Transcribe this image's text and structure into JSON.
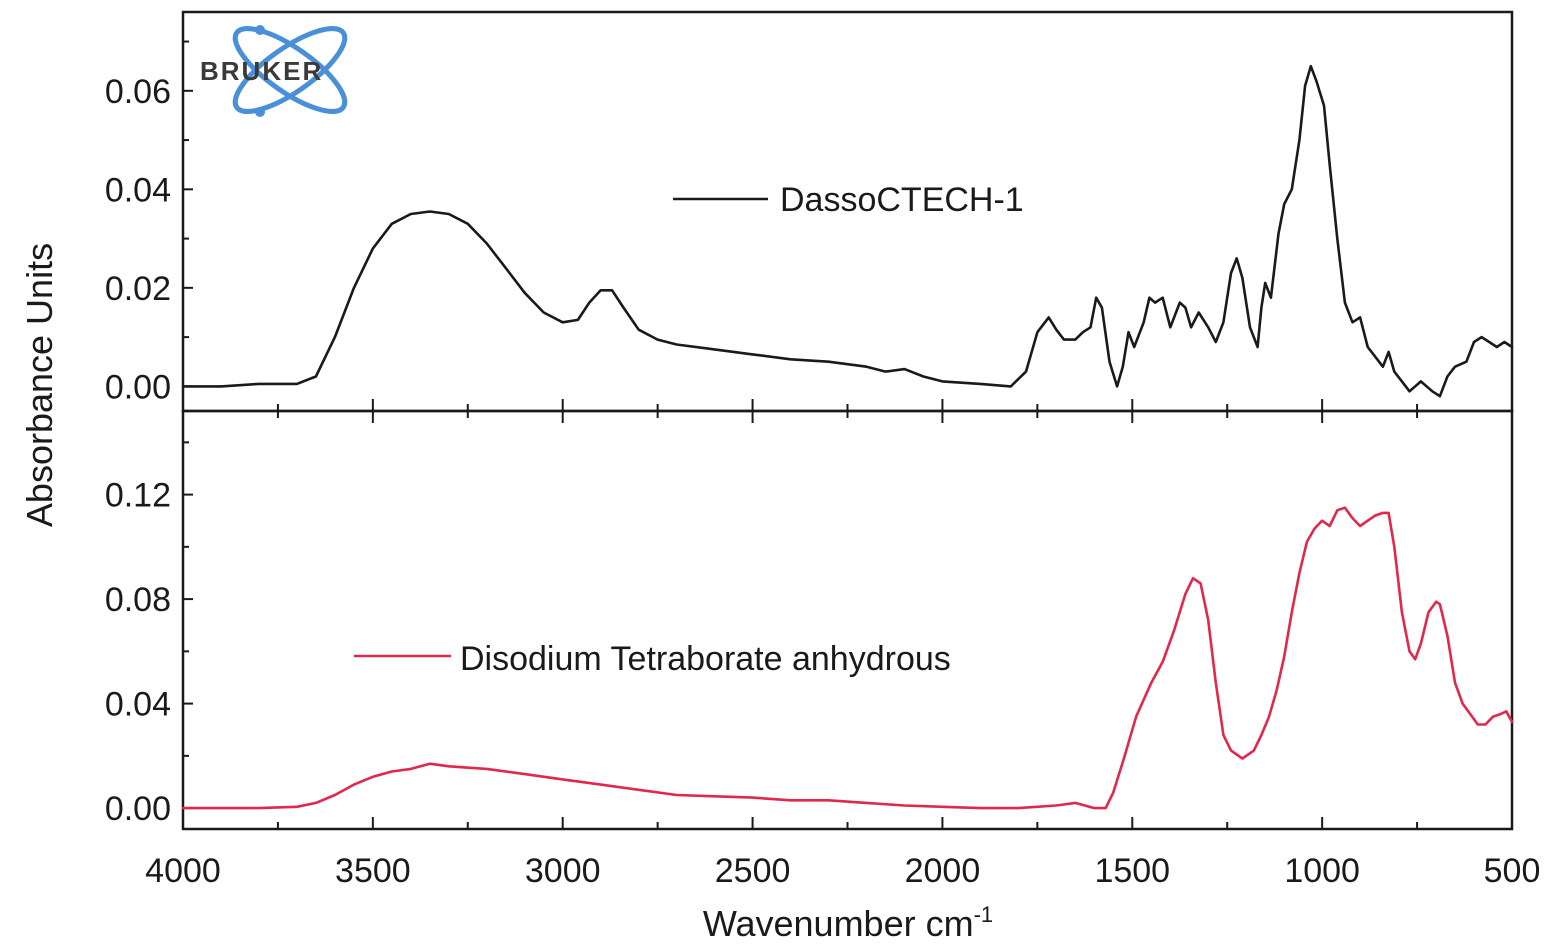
{
  "colors": {
    "series_black": "#1a1a1a",
    "series_red": "#e0294a",
    "logo_blue": "#4a90d9",
    "logo_text": "#3a3a3a"
  },
  "logo": {
    "text": "BRUKER",
    "icon": "bruker-atom-logo"
  },
  "chart_data": [
    {
      "type": "line",
      "panel": "top",
      "x_reversed": true,
      "xlim": [
        4000,
        500
      ],
      "ylim": [
        -0.005,
        0.076
      ],
      "yticks": [
        "0.00",
        "0.02",
        "0.04",
        "0.06"
      ],
      "ytick_values": [
        0.0,
        0.02,
        0.04,
        0.06
      ],
      "legend": "DassoCTECH-1",
      "legend_position": "top-center",
      "series": [
        {
          "name": "DassoCTECH-1",
          "color": "#1a1a1a",
          "points": [
            [
              4000,
              0.0
            ],
            [
              3900,
              0.0
            ],
            [
              3800,
              0.0005
            ],
            [
              3700,
              0.0005
            ],
            [
              3650,
              0.002
            ],
            [
              3600,
              0.01
            ],
            [
              3550,
              0.02
            ],
            [
              3500,
              0.028
            ],
            [
              3450,
              0.033
            ],
            [
              3400,
              0.035
            ],
            [
              3350,
              0.0355
            ],
            [
              3300,
              0.035
            ],
            [
              3250,
              0.033
            ],
            [
              3200,
              0.029
            ],
            [
              3150,
              0.024
            ],
            [
              3100,
              0.019
            ],
            [
              3050,
              0.015
            ],
            [
              3000,
              0.013
            ],
            [
              2960,
              0.0135
            ],
            [
              2930,
              0.017
            ],
            [
              2900,
              0.0195
            ],
            [
              2870,
              0.0195
            ],
            [
              2840,
              0.016
            ],
            [
              2800,
              0.0115
            ],
            [
              2750,
              0.0095
            ],
            [
              2700,
              0.0085
            ],
            [
              2600,
              0.0075
            ],
            [
              2500,
              0.0065
            ],
            [
              2400,
              0.0055
            ],
            [
              2300,
              0.005
            ],
            [
              2200,
              0.004
            ],
            [
              2150,
              0.003
            ],
            [
              2100,
              0.0035
            ],
            [
              2050,
              0.002
            ],
            [
              2000,
              0.001
            ],
            [
              1900,
              0.0005
            ],
            [
              1820,
              0.0
            ],
            [
              1780,
              0.003
            ],
            [
              1750,
              0.011
            ],
            [
              1720,
              0.014
            ],
            [
              1700,
              0.0115
            ],
            [
              1680,
              0.0095
            ],
            [
              1650,
              0.0095
            ],
            [
              1630,
              0.011
            ],
            [
              1610,
              0.012
            ],
            [
              1595,
              0.018
            ],
            [
              1580,
              0.016
            ],
            [
              1560,
              0.005
            ],
            [
              1540,
              0.0
            ],
            [
              1525,
              0.004
            ],
            [
              1510,
              0.011
            ],
            [
              1495,
              0.008
            ],
            [
              1470,
              0.013
            ],
            [
              1455,
              0.018
            ],
            [
              1440,
              0.017
            ],
            [
              1420,
              0.018
            ],
            [
              1400,
              0.012
            ],
            [
              1375,
              0.017
            ],
            [
              1360,
              0.016
            ],
            [
              1345,
              0.012
            ],
            [
              1325,
              0.015
            ],
            [
              1300,
              0.012
            ],
            [
              1280,
              0.009
            ],
            [
              1260,
              0.013
            ],
            [
              1240,
              0.023
            ],
            [
              1225,
              0.026
            ],
            [
              1210,
              0.022
            ],
            [
              1190,
              0.012
            ],
            [
              1170,
              0.008
            ],
            [
              1160,
              0.016
            ],
            [
              1150,
              0.021
            ],
            [
              1135,
              0.018
            ],
            [
              1115,
              0.031
            ],
            [
              1100,
              0.037
            ],
            [
              1080,
              0.04
            ],
            [
              1060,
              0.05
            ],
            [
              1045,
              0.061
            ],
            [
              1030,
              0.065
            ],
            [
              1015,
              0.062
            ],
            [
              995,
              0.057
            ],
            [
              980,
              0.045
            ],
            [
              960,
              0.03
            ],
            [
              940,
              0.017
            ],
            [
              920,
              0.013
            ],
            [
              900,
              0.014
            ],
            [
              880,
              0.008
            ],
            [
              860,
              0.006
            ],
            [
              840,
              0.004
            ],
            [
              825,
              0.007
            ],
            [
              810,
              0.003
            ],
            [
              790,
              0.001
            ],
            [
              770,
              -0.001
            ],
            [
              740,
              0.001
            ],
            [
              710,
              -0.001
            ],
            [
              690,
              -0.002
            ],
            [
              670,
              0.002
            ],
            [
              650,
              0.004
            ],
            [
              620,
              0.005
            ],
            [
              600,
              0.009
            ],
            [
              580,
              0.01
            ],
            [
              560,
              0.009
            ],
            [
              540,
              0.008
            ],
            [
              520,
              0.009
            ],
            [
              500,
              0.008
            ]
          ]
        }
      ]
    },
    {
      "type": "line",
      "panel": "bottom",
      "x_reversed": true,
      "xlim": [
        4000,
        500
      ],
      "ylim": [
        -0.008,
        0.152
      ],
      "xticks": [
        "4000",
        "3500",
        "3000",
        "2500",
        "2000",
        "1500",
        "1000",
        "500"
      ],
      "xtick_values": [
        4000,
        3500,
        3000,
        2500,
        2000,
        1500,
        1000,
        500
      ],
      "yticks": [
        "0.00",
        "0.04",
        "0.08",
        "0.12"
      ],
      "ytick_values": [
        0.0,
        0.04,
        0.08,
        0.12
      ],
      "legend": "Disodium Tetraborate anhydrous",
      "legend_position": "center-left",
      "series": [
        {
          "name": "Disodium Tetraborate anhydrous",
          "color": "#e0294a",
          "points": [
            [
              4000,
              0.0
            ],
            [
              3900,
              0.0
            ],
            [
              3800,
              0.0
            ],
            [
              3700,
              0.0005
            ],
            [
              3650,
              0.002
            ],
            [
              3600,
              0.005
            ],
            [
              3550,
              0.009
            ],
            [
              3500,
              0.012
            ],
            [
              3450,
              0.014
            ],
            [
              3400,
              0.015
            ],
            [
              3350,
              0.017
            ],
            [
              3300,
              0.016
            ],
            [
              3200,
              0.015
            ],
            [
              3100,
              0.013
            ],
            [
              3000,
              0.011
            ],
            [
              2900,
              0.009
            ],
            [
              2800,
              0.007
            ],
            [
              2700,
              0.005
            ],
            [
              2600,
              0.0045
            ],
            [
              2500,
              0.004
            ],
            [
              2400,
              0.003
            ],
            [
              2300,
              0.003
            ],
            [
              2200,
              0.002
            ],
            [
              2100,
              0.001
            ],
            [
              2000,
              0.0005
            ],
            [
              1900,
              0.0
            ],
            [
              1800,
              0.0
            ],
            [
              1700,
              0.001
            ],
            [
              1650,
              0.002
            ],
            [
              1600,
              0.0
            ],
            [
              1570,
              0.0
            ],
            [
              1550,
              0.006
            ],
            [
              1520,
              0.02
            ],
            [
              1490,
              0.035
            ],
            [
              1450,
              0.048
            ],
            [
              1420,
              0.056
            ],
            [
              1390,
              0.068
            ],
            [
              1360,
              0.082
            ],
            [
              1340,
              0.088
            ],
            [
              1320,
              0.086
            ],
            [
              1300,
              0.072
            ],
            [
              1280,
              0.048
            ],
            [
              1260,
              0.028
            ],
            [
              1240,
              0.022
            ],
            [
              1210,
              0.019
            ],
            [
              1180,
              0.022
            ],
            [
              1160,
              0.028
            ],
            [
              1140,
              0.035
            ],
            [
              1120,
              0.045
            ],
            [
              1100,
              0.058
            ],
            [
              1080,
              0.075
            ],
            [
              1060,
              0.09
            ],
            [
              1040,
              0.102
            ],
            [
              1020,
              0.107
            ],
            [
              1000,
              0.11
            ],
            [
              980,
              0.108
            ],
            [
              960,
              0.114
            ],
            [
              940,
              0.115
            ],
            [
              920,
              0.111
            ],
            [
              900,
              0.108
            ],
            [
              880,
              0.11
            ],
            [
              860,
              0.112
            ],
            [
              840,
              0.113
            ],
            [
              825,
              0.113
            ],
            [
              810,
              0.1
            ],
            [
              790,
              0.075
            ],
            [
              770,
              0.06
            ],
            [
              755,
              0.057
            ],
            [
              740,
              0.063
            ],
            [
              720,
              0.075
            ],
            [
              700,
              0.079
            ],
            [
              690,
              0.078
            ],
            [
              670,
              0.066
            ],
            [
              650,
              0.048
            ],
            [
              630,
              0.04
            ],
            [
              610,
              0.036
            ],
            [
              590,
              0.032
            ],
            [
              570,
              0.032
            ],
            [
              550,
              0.035
            ],
            [
              530,
              0.036
            ],
            [
              515,
              0.037
            ],
            [
              500,
              0.033
            ]
          ]
        }
      ]
    }
  ],
  "axes": {
    "ylabel": "Absorbance Units",
    "xlabel_main": "Wavenumber cm",
    "xlabel_sup": "-1"
  }
}
